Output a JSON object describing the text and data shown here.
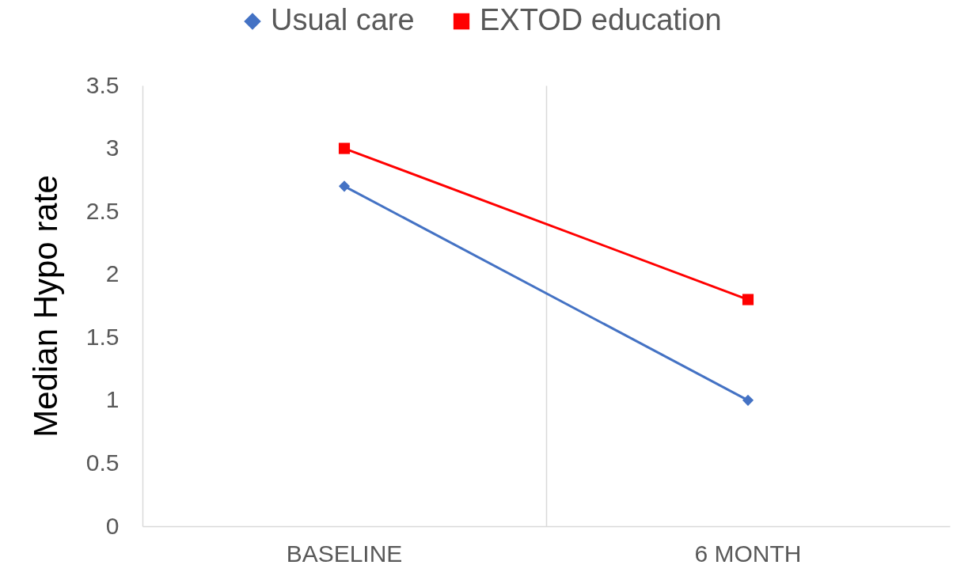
{
  "chart_data": {
    "type": "line",
    "ylabel": "Median Hypo rate",
    "categories": [
      "BASELINE",
      "6 MONTH"
    ],
    "series": [
      {
        "name": "Usual care",
        "color": "#4472c4",
        "marker": "diamond",
        "values": [
          2.7,
          1.0
        ]
      },
      {
        "name": "EXTOD education",
        "color": "#ff0000",
        "marker": "square",
        "values": [
          3.0,
          1.8
        ]
      }
    ],
    "ylim": [
      0,
      3.5
    ],
    "yticks": [
      0,
      0.5,
      1,
      1.5,
      2,
      2.5,
      3,
      3.5
    ],
    "grid": "x",
    "legend": "top",
    "line_style": "solid"
  }
}
